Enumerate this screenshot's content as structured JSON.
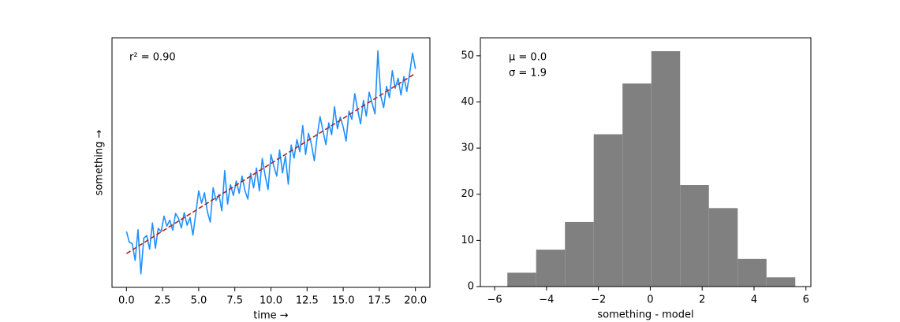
{
  "chart_data": [
    {
      "type": "line",
      "annotations": [
        "r² = 0.90"
      ],
      "x_label": "time →",
      "y_label": "something →",
      "xlim": [
        -1,
        21
      ],
      "xticks": [
        {
          "value": 0,
          "label": "0.0"
        },
        {
          "value": 2.5,
          "label": "2.5"
        },
        {
          "value": 5,
          "label": "5.0"
        },
        {
          "value": 7.5,
          "label": "7.5"
        },
        {
          "value": 10,
          "label": "10.0"
        },
        {
          "value": 12.5,
          "label": "12.5"
        },
        {
          "value": 15,
          "label": "15.0"
        },
        {
          "value": 17.5,
          "label": "17.5"
        },
        {
          "value": 20,
          "label": "20.0"
        }
      ],
      "ylim": [
        -7.5,
        47.9
      ],
      "series": [
        {
          "color": "#1e90ff",
          "dashed": false,
          "x": [
            0,
            0.2,
            0.4,
            0.6,
            0.8,
            1,
            1.2,
            1.4,
            1.6,
            1.8,
            2,
            2.2,
            2.4,
            2.6,
            2.8,
            3,
            3.2,
            3.4,
            3.6,
            3.8,
            4,
            4.2,
            4.4,
            4.6,
            4.8,
            5,
            5.2,
            5.4,
            5.6,
            5.8,
            6,
            6.2,
            6.4,
            6.6,
            6.8,
            7,
            7.2,
            7.4,
            7.6,
            7.8,
            8,
            8.2,
            8.4,
            8.6,
            8.8,
            9,
            9.2,
            9.4,
            9.6,
            9.8,
            10,
            10.2,
            10.4,
            10.6,
            10.8,
            11,
            11.2,
            11.4,
            11.6,
            11.8,
            12,
            12.2,
            12.4,
            12.6,
            12.8,
            13,
            13.2,
            13.4,
            13.6,
            13.8,
            14,
            14.2,
            14.4,
            14.6,
            14.8,
            15,
            15.2,
            15.4,
            15.6,
            15.8,
            16,
            16.2,
            16.4,
            16.6,
            16.8,
            17,
            17.2,
            17.4,
            17.6,
            17.8,
            18,
            18.2,
            18.4,
            18.6,
            18.8,
            19,
            19.2,
            19.4,
            19.6,
            19.8,
            20
          ],
          "values": [
            4.9,
            2.5,
            2.2,
            -1.5,
            5.3,
            -4.5,
            3.4,
            4.0,
            1.0,
            6.8,
            1.2,
            5.6,
            4.9,
            8.3,
            6.1,
            7.4,
            5.2,
            8.9,
            7.8,
            5.7,
            9.1,
            6.3,
            8.0,
            4.1,
            8.9,
            13.9,
            11.2,
            13.5,
            9.3,
            7.0,
            14.6,
            11.8,
            13.1,
            9.5,
            18.4,
            11.0,
            15.3,
            12.9,
            16.1,
            13.4,
            17.2,
            14.0,
            12.1,
            17.8,
            14.6,
            19.0,
            13.9,
            21.1,
            17.3,
            14.2,
            22.0,
            19.4,
            17.2,
            23.0,
            17.9,
            21.6,
            15.4,
            24.1,
            21.2,
            25.3,
            22.6,
            28.4,
            22.0,
            26.7,
            24.3,
            20.6,
            26.1,
            30.4,
            27.3,
            24.2,
            29.0,
            26.4,
            32.6,
            27.7,
            30.3,
            28.1,
            25.0,
            31.6,
            29.8,
            35.5,
            31.9,
            28.8,
            34.0,
            30.5,
            35.8,
            33.4,
            31.0,
            45.0,
            35.0,
            32.4,
            37.1,
            34.6,
            40.6,
            36.7,
            38.9,
            35.2,
            39.3,
            36.0,
            40.0,
            44.5,
            41.0
          ]
        },
        {
          "color": "#b22222",
          "dashed": true,
          "x": [
            0,
            20
          ],
          "values": [
            0,
            40
          ]
        }
      ]
    },
    {
      "type": "histogram",
      "annotations": [
        "μ = 0.0",
        "σ = 1.9"
      ],
      "x_label": "something - model",
      "color": "#808080",
      "bins": [
        -5.51,
        -4.4,
        -3.29,
        -2.18,
        -1.07,
        0.04,
        1.15,
        2.26,
        3.37,
        4.48,
        5.59
      ],
      "values": [
        3,
        8,
        14,
        33,
        44,
        51,
        22,
        17,
        6,
        2
      ],
      "xlim": [
        -6.55,
        6.19
      ],
      "xticks": [
        {
          "value": -6,
          "label": "−6"
        },
        {
          "value": -4,
          "label": "−4"
        },
        {
          "value": -2,
          "label": "−2"
        },
        0,
        2,
        4,
        6
      ],
      "ylim": [
        0,
        53.9
      ],
      "yticks": [
        0,
        10,
        20,
        30,
        40,
        50
      ]
    }
  ]
}
